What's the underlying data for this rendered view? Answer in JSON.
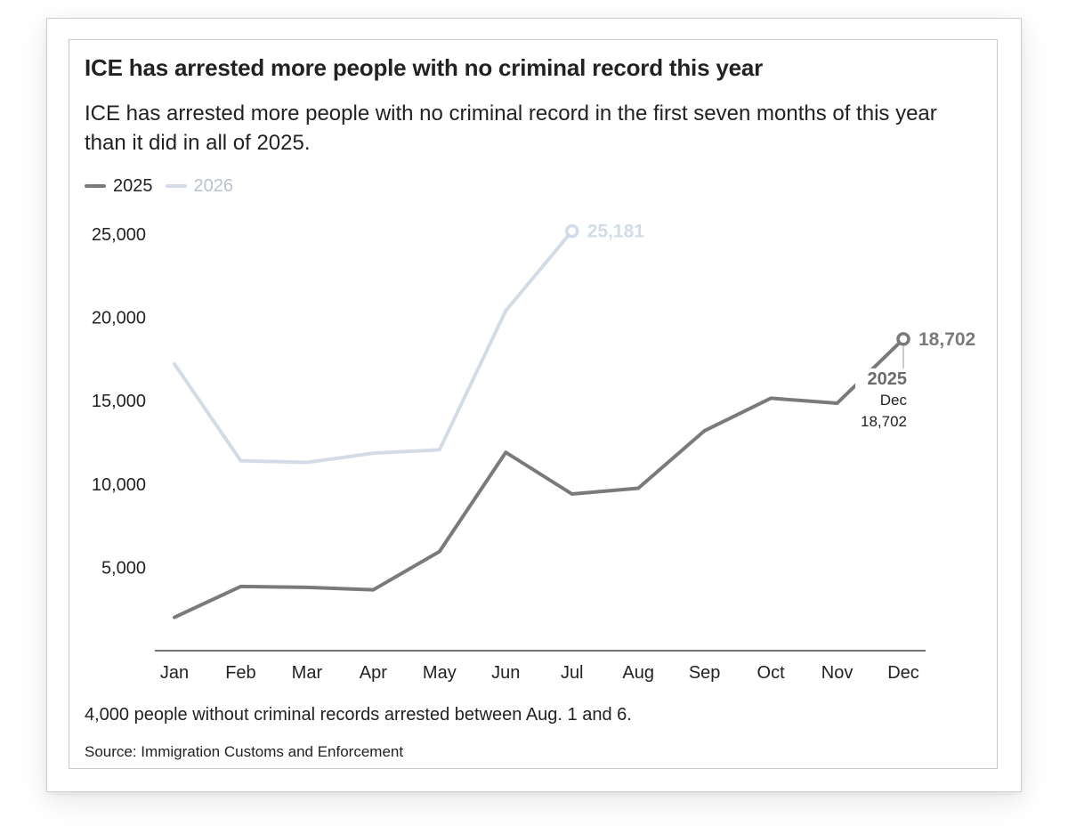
{
  "header": {
    "title": "ICE has arrested more people with no criminal record this year",
    "subtitle": "ICE has arrested more people with no criminal record in the first seven months of this year than it did in all of 2025."
  },
  "legend": [
    {
      "label": "2025",
      "color": "#7a7a7a"
    },
    {
      "label": "2026",
      "color": "#d3dce6"
    }
  ],
  "footer": {
    "note": "4,000 people without criminal records arrested between Aug. 1 and 6.",
    "source": "Source: Immigration Customs and Enforcement"
  },
  "chart_data": {
    "type": "line",
    "title": "ICE has arrested more people with no criminal record this year",
    "xlabel": "",
    "ylabel": "",
    "categories": [
      "Jan",
      "Feb",
      "Mar",
      "Apr",
      "May",
      "Jun",
      "Jul",
      "Aug",
      "Sep",
      "Oct",
      "Nov",
      "Dec"
    ],
    "y_ticks": [
      5000,
      10000,
      15000,
      20000,
      25000
    ],
    "y_tick_labels": [
      "5,000",
      "10,000",
      "15,000",
      "20,000",
      "25,000"
    ],
    "ylim": [
      0,
      25500
    ],
    "grid": false,
    "legend_position": "top-left",
    "series": [
      {
        "name": "2025",
        "color": "#7a7a7a",
        "values": [
          2000,
          3850,
          3800,
          3650,
          5950,
          11900,
          9400,
          9750,
          13200,
          15150,
          14850,
          18702
        ],
        "end_label": "18,702"
      },
      {
        "name": "2026",
        "color": "#d3dce6",
        "values": [
          17200,
          11400,
          11300,
          11850,
          12050,
          20400,
          25181,
          null,
          null,
          null,
          null,
          null
        ],
        "end_label": "25,181"
      }
    ],
    "tooltip": {
      "series": "2025",
      "month": "Dec",
      "value": "18,702"
    }
  }
}
